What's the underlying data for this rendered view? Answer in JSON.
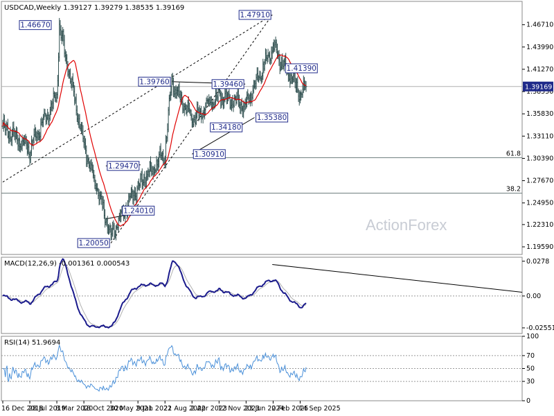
{
  "title": "USDCAD,Weekly  1.39127 1.39279 1.38535 1.39169",
  "watermark": "ActionForex",
  "colors": {
    "bars": "#2f4f4f",
    "ma": "#e00000",
    "trend": "#000000",
    "macd": "#1a1a8c",
    "signal": "#b0b0b0",
    "rsi": "#4a90d9",
    "labelBox": "#1f2a8a",
    "currentPrice": "#1f2a8a"
  },
  "chart_data": [
    {
      "type": "candlestick",
      "name": "price",
      "title": "USDCAD,Weekly",
      "ohlc_header": "1.39127 1.39279 1.38535 1.39169",
      "ylim": [
        1.1866,
        1.4956
      ],
      "y_ticks": [
        "1.46710",
        "1.43990",
        "1.41270",
        "1.38550",
        "1.35830",
        "1.33110",
        "1.30390",
        "1.27670",
        "1.24950",
        "1.22310",
        "1.19590"
      ],
      "current_price": "1.39169",
      "x_ticks": [
        "16 Dec 2018",
        "28 Jul 2019",
        "8 Mar 2020",
        "18 Oct 2020",
        "30 May 2021",
        "9 Jan 2022",
        "21 Aug 2022",
        "2 Apr 2023",
        "12 Nov 2023",
        "23 Jun 2024",
        "2 Feb 2025",
        "14 Sep 2025"
      ],
      "anchors": [
        [
          "16 Dec 2018",
          1.342
        ],
        [
          "28 Jul 2019",
          1.315
        ],
        [
          "8 Mar 2020",
          1.38
        ],
        [
          "30 Mar 2020",
          1.4667
        ],
        [
          "18 Oct 2020",
          1.32
        ],
        [
          "30 May 2021",
          1.21
        ],
        [
          "9 Jan 2022",
          1.27
        ],
        [
          "21 Aug 2022",
          1.31
        ],
        [
          "16 Oct 2022",
          1.3976
        ],
        [
          "2 Apr 2023",
          1.352
        ],
        [
          "12 Nov 2023",
          1.38
        ],
        [
          "23 Jun 2024",
          1.37
        ],
        [
          "2 Feb 2025",
          1.44
        ],
        [
          "14 Sep 2025",
          1.384
        ],
        [
          "2 Nov 2025",
          1.3917
        ]
      ],
      "price_labels": [
        "1.46670",
        "1.47910",
        "1.39760",
        "1.39460",
        "1.41390",
        "1.29470",
        "1.24010",
        "1.20050",
        "1.30910",
        "1.34180",
        "1.35380"
      ],
      "fib_levels": [
        {
          "label": "61.8",
          "value": 1.3048
        },
        {
          "label": "38.2",
          "value": 1.2614
        }
      ]
    },
    {
      "type": "line",
      "name": "MACD(12,26,9)",
      "header": "MACD(12,26,9) -0.001361 0.000543",
      "ylim": [
        -0.03,
        0.031
      ],
      "y_ticks": [
        "0.0278",
        "0.00",
        "-0.025511"
      ],
      "current_value": "0.00"
    },
    {
      "type": "line",
      "name": "RSI(14)",
      "header": "RSI(14) 51.9694",
      "ylim": [
        0,
        100
      ],
      "y_ticks": [
        "100",
        "70",
        "50",
        "30",
        "0"
      ],
      "current_value": "51.9694"
    }
  ]
}
